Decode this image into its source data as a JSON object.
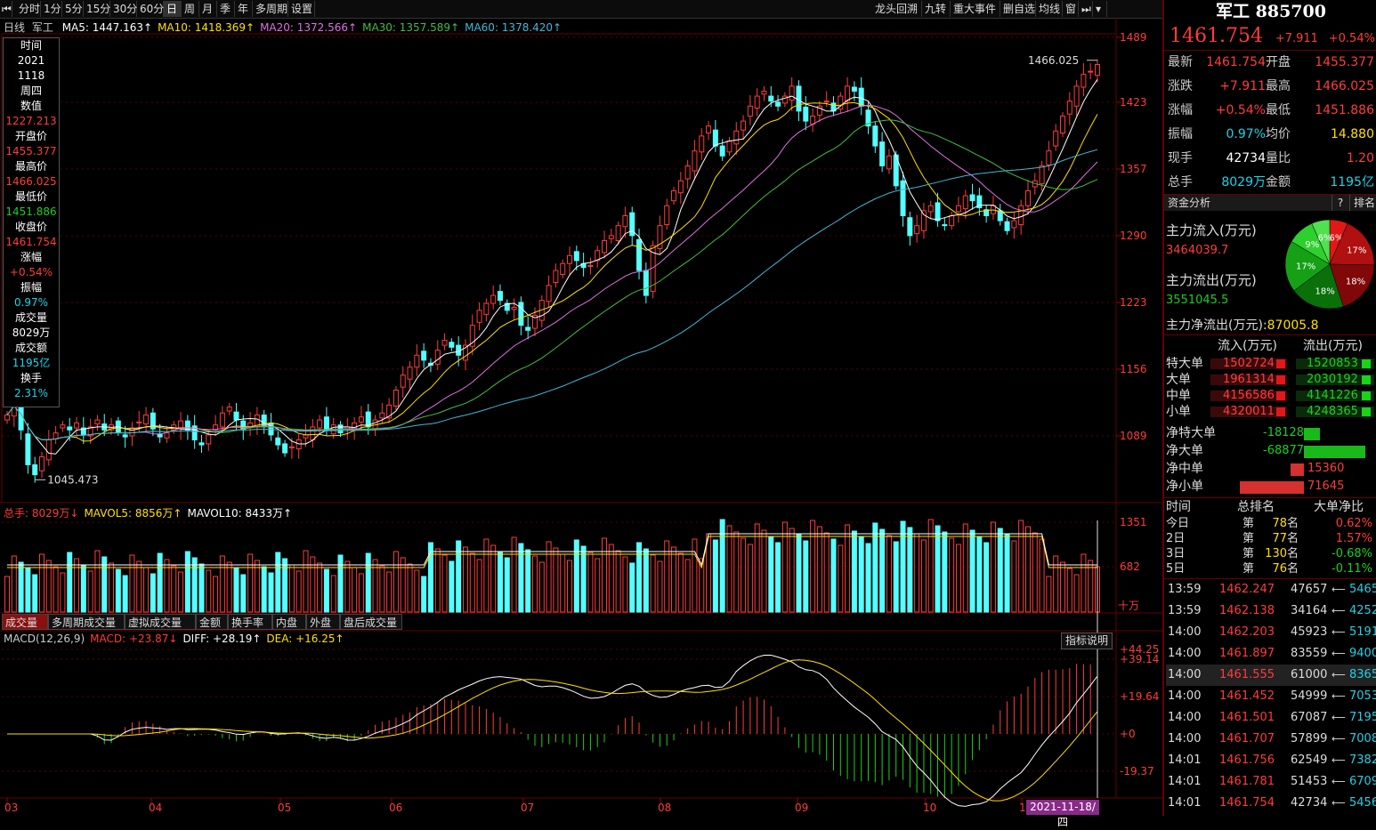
{
  "toolbar": {
    "left_items": [
      "分时",
      "1分",
      "5分",
      "15分",
      "30分",
      "60分",
      "日",
      "周",
      "月",
      "季",
      "年",
      "多周期",
      "设置"
    ],
    "active": "日",
    "right_items": [
      "龙头回溯",
      "九转",
      "重大事件",
      "删自选",
      "均线",
      "窗"
    ]
  },
  "main_chart": {
    "period_label": "日线",
    "name": "军工",
    "ma": [
      {
        "label": "MA5: 1447.163",
        "color": "#ffffff"
      },
      {
        "label": "MA10: 1418.369",
        "color": "#ffe000"
      },
      {
        "label": "MA20: 1372.566",
        "color": "#e070e0"
      },
      {
        "label": "MA30: 1357.589",
        "color": "#3fbf3f"
      },
      {
        "label": "MA60: 1378.420",
        "color": "#40b8d8"
      }
    ],
    "y_ticks": [
      "1489",
      "1423",
      "1357",
      "1290",
      "1223",
      "1156",
      "1089"
    ],
    "high_label": "1466.025",
    "low_label": "1045.473"
  },
  "infobox": {
    "items": [
      {
        "t": "时间",
        "c": "w"
      },
      {
        "t": "2021",
        "c": "w"
      },
      {
        "t": "1118",
        "c": "w"
      },
      {
        "t": "周四",
        "c": "w"
      },
      {
        "t": "数值",
        "c": "w"
      },
      {
        "t": "1227.213",
        "c": "r"
      },
      {
        "t": "开盘价",
        "c": "w"
      },
      {
        "t": "1455.377",
        "c": "r"
      },
      {
        "t": "最高价",
        "c": "w"
      },
      {
        "t": "1466.025",
        "c": "r"
      },
      {
        "t": "最低价",
        "c": "w"
      },
      {
        "t": "1451.886",
        "c": "g"
      },
      {
        "t": "收盘价",
        "c": "w"
      },
      {
        "t": "1461.754",
        "c": "r"
      },
      {
        "t": "涨幅",
        "c": "w"
      },
      {
        "t": "+0.54%",
        "c": "r"
      },
      {
        "t": "振幅",
        "c": "w"
      },
      {
        "t": "0.97%",
        "c": "c"
      },
      {
        "t": "成交量",
        "c": "w"
      },
      {
        "t": "8029万",
        "c": "w"
      },
      {
        "t": "成交额",
        "c": "w"
      },
      {
        "t": "1195亿",
        "c": "c"
      },
      {
        "t": "换手",
        "c": "w"
      },
      {
        "t": "2.31%",
        "c": "c"
      }
    ]
  },
  "volume_chart": {
    "labels": [
      {
        "t": "总手: 8029万",
        "color": "#ff3c3c"
      },
      {
        "t": "MAVOL5: 8856万",
        "color": "#ffe000"
      },
      {
        "t": "MAVOL10: 8433万",
        "color": "#ffffff"
      }
    ],
    "y_ticks": [
      "1351",
      "682"
    ],
    "unit": "十万",
    "tabs": [
      "成交量",
      "多周期成交量",
      "虚拟成交量",
      "金额",
      "换手率",
      "内盘",
      "外盘",
      "盘后成交量"
    ],
    "active_tab": "成交量"
  },
  "macd_chart": {
    "labels": [
      {
        "t": "MACD(12,26,9)",
        "color": "#ccc"
      },
      {
        "t": "MACD: +23.87",
        "color": "#ff3c3c"
      },
      {
        "t": "DIFF: +28.19",
        "color": "#ffffff"
      },
      {
        "t": "DEA: +16.25",
        "color": "#ffe000"
      }
    ],
    "help_button": "指标说明",
    "y_ticks": [
      "+44.25",
      "+39.14",
      "+19.64",
      "+0",
      "-19.37"
    ]
  },
  "x_axis": {
    "months": [
      "03",
      "04",
      "05",
      "06",
      "07",
      "08",
      "09",
      "10",
      "11"
    ],
    "cursor_date": "2021-11-18/四"
  },
  "quote": {
    "title": "军工 885700",
    "price": "1461.754",
    "change": "+7.911",
    "pct": "+0.54%",
    "rows": [
      {
        "l1": "最新",
        "v1": "1461.754",
        "c1": "r",
        "l2": "开盘",
        "v2": "1455.377",
        "c2": "r"
      },
      {
        "l1": "涨跌",
        "v1": "+7.911",
        "c1": "r",
        "l2": "最高",
        "v2": "1466.025",
        "c2": "r"
      },
      {
        "l1": "涨幅",
        "v1": "+0.54%",
        "c1": "r",
        "l2": "最低",
        "v2": "1451.886",
        "c2": "r"
      },
      {
        "l1": "振幅",
        "v1": "0.97%",
        "c1": "c",
        "l2": "均价",
        "v2": "14.880",
        "c2": "y"
      },
      {
        "l1": "现手",
        "v1": "42734",
        "c1": "w",
        "l2": "量比",
        "v2": "1.20",
        "c2": "r"
      },
      {
        "l1": "总手",
        "v1": "8029万",
        "c1": "c",
        "l2": "金额",
        "v2": "1195亿",
        "c2": "c"
      }
    ]
  },
  "fund": {
    "header": "资金分析",
    "help": "?",
    "rank_btn": "排名",
    "inflow_label": "主力流入(万元)",
    "inflow_value": "3464039.7",
    "outflow_label": "主力流出(万元)",
    "outflow_value": "3551045.5",
    "net_label": "主力净流出(万元):",
    "net_value": "87005.8",
    "pie": [
      {
        "label": "6%",
        "pct": 6,
        "color": "#e01818"
      },
      {
        "label": "17%",
        "pct": 17,
        "color": "#b01010"
      },
      {
        "label": "18%",
        "pct": 18,
        "color": "#800808"
      },
      {
        "label": "18%",
        "pct": 18,
        "color": "#0a700a"
      },
      {
        "label": "17%",
        "pct": 17,
        "color": "#16a016"
      },
      {
        "label": "9%",
        "pct": 9,
        "color": "#2ed02e"
      },
      {
        "label": "6%",
        "pct": 6,
        "color": "#50e050"
      }
    ],
    "col_in": "流入(万元)",
    "col_out": "流出(万元)",
    "flows": [
      {
        "name": "特大单",
        "in": "1502724",
        "out": "1520853"
      },
      {
        "name": "大单",
        "in": "1961314",
        "out": "2030192"
      },
      {
        "name": "中单",
        "in": "4156586",
        "out": "4141226"
      },
      {
        "name": "小单",
        "in": "4320011",
        "out": "4248365"
      }
    ],
    "nets": [
      {
        "name": "净特大单",
        "value": "-18128",
        "v": -18128
      },
      {
        "name": "净大单",
        "value": "-68877",
        "v": -68877
      },
      {
        "name": "净中单",
        "value": "15360",
        "v": 15360
      },
      {
        "name": "净小单",
        "value": "71645",
        "v": 71645
      }
    ]
  },
  "rank": {
    "headers": [
      "时间",
      "总排名",
      "大单净比"
    ],
    "rows": [
      {
        "d": "今日",
        "r": "78",
        "p": "0.62%",
        "c": "r"
      },
      {
        "d": "2日",
        "r": "77",
        "p": "1.57%",
        "c": "r"
      },
      {
        "d": "3日",
        "r": "130",
        "p": "-0.68%",
        "c": "g"
      },
      {
        "d": "5日",
        "r": "76",
        "p": "-0.11%",
        "c": "g"
      }
    ],
    "prefix": "第",
    "suffix": "名"
  },
  "ticks": [
    {
      "t": "13:59",
      "p": "1462.247",
      "v": "47657",
      "n": "5465"
    },
    {
      "t": "13:59",
      "p": "1462.138",
      "v": "34164",
      "n": "4252"
    },
    {
      "t": "14:00",
      "p": "1462.203",
      "v": "45923",
      "n": "5191"
    },
    {
      "t": "14:00",
      "p": "1461.897",
      "v": "83559",
      "n": "9400"
    },
    {
      "t": "14:00",
      "p": "1461.555",
      "v": "61000",
      "n": "8365"
    },
    {
      "t": "14:00",
      "p": "1461.452",
      "v": "54999",
      "n": "7053"
    },
    {
      "t": "14:00",
      "p": "1461.501",
      "v": "67087",
      "n": "7195"
    },
    {
      "t": "14:00",
      "p": "1461.707",
      "v": "57899",
      "n": "7008"
    },
    {
      "t": "14:01",
      "p": "1461.756",
      "v": "62549",
      "n": "7382"
    },
    {
      "t": "14:01",
      "p": "1461.781",
      "v": "51453",
      "n": "6709"
    },
    {
      "t": "14:01",
      "p": "1461.754",
      "v": "42734",
      "n": "5456"
    }
  ],
  "colors": {
    "up": "#ff3c3c",
    "down": "#54ffff",
    "border": "#600000"
  }
}
